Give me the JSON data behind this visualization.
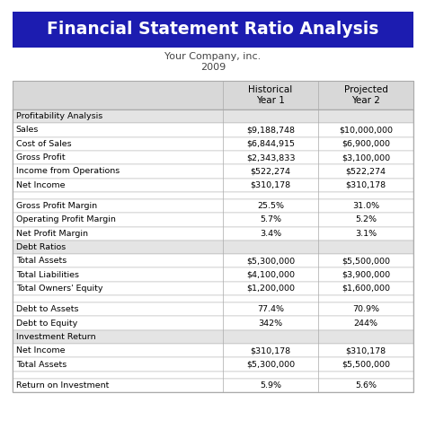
{
  "title": "Financial Statement Ratio Analysis",
  "subtitle1": "Your Company, inc.",
  "subtitle2": "2009",
  "title_bg": "#1C1CB0",
  "title_color": "#FFFFFF",
  "col_headers": [
    "",
    "Historical\nYear 1",
    "Projected\nYear 2"
  ],
  "col_header_bg": "#D8D8D8",
  "rows": [
    {
      "label": "Profitability Analysis",
      "val1": "",
      "val2": "",
      "type": "section"
    },
    {
      "label": "Sales",
      "val1": "$9,188,748",
      "val2": "$10,000,000",
      "type": "data"
    },
    {
      "label": "Cost of Sales",
      "val1": "$6,844,915",
      "val2": "$6,900,000",
      "type": "data"
    },
    {
      "label": "Gross Profit",
      "val1": "$2,343,833",
      "val2": "$3,100,000",
      "type": "data"
    },
    {
      "label": "Income from Operations",
      "val1": "$522,274",
      "val2": "$522,274",
      "type": "data"
    },
    {
      "label": "Net Income",
      "val1": "$310,178",
      "val2": "$310,178",
      "type": "data"
    },
    {
      "label": "",
      "val1": "",
      "val2": "",
      "type": "spacer"
    },
    {
      "label": "Gross Profit Margin",
      "val1": "25.5%",
      "val2": "31.0%",
      "type": "data"
    },
    {
      "label": "Operating Profit Margin",
      "val1": "5.7%",
      "val2": "5.2%",
      "type": "data"
    },
    {
      "label": "Net Profit Margin",
      "val1": "3.4%",
      "val2": "3.1%",
      "type": "data"
    },
    {
      "label": "Debt Ratios",
      "val1": "",
      "val2": "",
      "type": "section"
    },
    {
      "label": "Total Assets",
      "val1": "$5,300,000",
      "val2": "$5,500,000",
      "type": "data"
    },
    {
      "label": "Total Liabilities",
      "val1": "$4,100,000",
      "val2": "$3,900,000",
      "type": "data"
    },
    {
      "label": "Total Owners' Equity",
      "val1": "$1,200,000",
      "val2": "$1,600,000",
      "type": "data"
    },
    {
      "label": "",
      "val1": "",
      "val2": "",
      "type": "spacer"
    },
    {
      "label": "Debt to Assets",
      "val1": "77.4%",
      "val2": "70.9%",
      "type": "data"
    },
    {
      "label": "Debt to Equity",
      "val1": "342%",
      "val2": "244%",
      "type": "data"
    },
    {
      "label": "Investment Return",
      "val1": "",
      "val2": "",
      "type": "section"
    },
    {
      "label": "Net Income",
      "val1": "$310,178",
      "val2": "$310,178",
      "type": "data"
    },
    {
      "label": "Total Assets",
      "val1": "$5,300,000",
      "val2": "$5,500,000",
      "type": "data"
    },
    {
      "label": "",
      "val1": "",
      "val2": "",
      "type": "spacer"
    },
    {
      "label": "Return on Investment",
      "val1": "5.9%",
      "val2": "5.6%",
      "type": "data"
    }
  ],
  "table_border_color": "#AAAAAA",
  "section_bg": "#E4E4E4",
  "data_bg": "#FFFFFF",
  "text_color": "#000000",
  "font_size": 6.8,
  "header_font_size": 7.5,
  "title_fontsize": 13.5,
  "subtitle_fontsize": 8.0,
  "fig_width": 4.74,
  "fig_height": 4.78,
  "dpi": 100
}
